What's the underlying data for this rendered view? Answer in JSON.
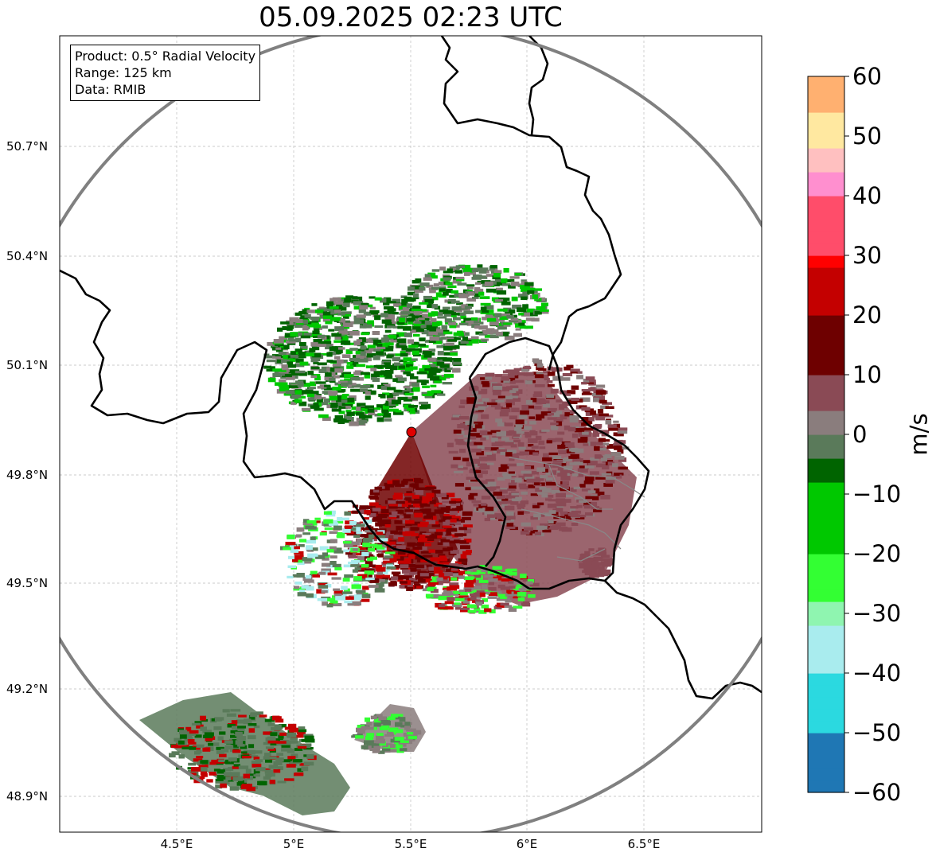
{
  "title": "05.09.2025 02:23 UTC",
  "info_box": {
    "product": "Product: 0.5° Radial Velocity",
    "range": "Range: 125 km",
    "data": "Data: RMIB"
  },
  "map": {
    "lat_ticks": [
      "50.7°N",
      "50.4°N",
      "50.1°N",
      "49.8°N",
      "49.5°N",
      "49.2°N",
      "48.9°N"
    ],
    "lon_ticks": [
      "4.5°E",
      "5°E",
      "5.5°E",
      "6°E",
      "6.5°E"
    ],
    "radar_site": {
      "lon": 5.505,
      "lat": 49.914
    },
    "range_ring_color": "#808080",
    "border_color": "#000000"
  },
  "colorbar": {
    "label": "m/s",
    "min": -60,
    "max": 60,
    "ticks": [
      "60",
      "50",
      "40",
      "30",
      "20",
      "10",
      "0",
      "−10",
      "−20",
      "−30",
      "−40",
      "−50",
      "−60"
    ],
    "colors": {
      "-60": "#1f77b4",
      "-50": "#2bd9e0",
      "-40": "#a9ecee",
      "-32": "#8ff5b0",
      "-28": "#33ff33",
      "-20": "#00c800",
      "-8": "#006400",
      "-4": "#5a7a5a",
      "0": "#8a7d7d",
      "5": "#8a4a55",
      "10": "#6e0000",
      "20": "#c40000",
      "28": "#ff0000",
      "30": "#ff4d6a",
      "40": "#ff8fcf",
      "45": "#ffc0c0",
      "48": "#ffe8a0",
      "55": "#ffb070",
      "60": "#ff9955"
    }
  }
}
